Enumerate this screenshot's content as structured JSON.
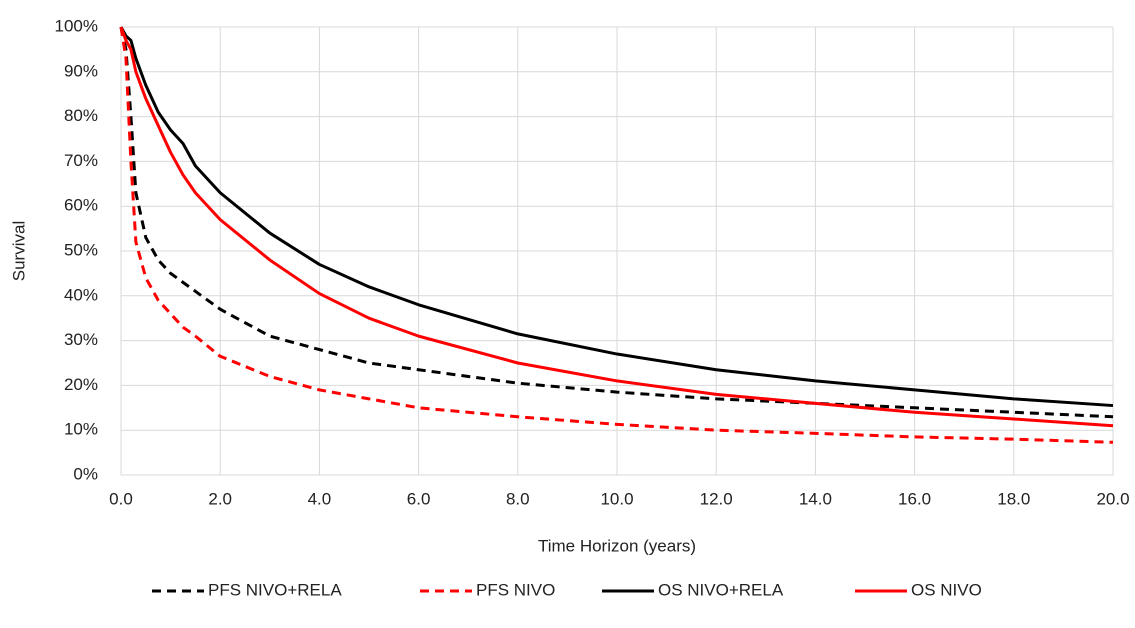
{
  "chart_data": {
    "type": "line",
    "xlabel": "Time Horizon (years)",
    "ylabel": "Survival",
    "x": [
      0,
      0.1,
      0.2,
      0.3,
      0.5,
      0.75,
      1,
      1.25,
      1.5,
      2,
      3,
      4,
      5,
      6,
      8,
      10,
      12,
      14,
      16,
      18,
      20
    ],
    "series": [
      {
        "name": "PFS NIVO+RELA",
        "color": "#000000",
        "dashed": true,
        "values": [
          100,
          95,
          80,
          63,
          53,
          48,
          45,
          43,
          41,
          37,
          31,
          28,
          25,
          23.5,
          20.5,
          18.5,
          17,
          16,
          15,
          14,
          13
        ]
      },
      {
        "name": "PFS NIVO",
        "color": "#ff0000",
        "dashed": true,
        "values": [
          100,
          93,
          70,
          52,
          44,
          39,
          36,
          33,
          31,
          26.5,
          22,
          19,
          17,
          15,
          13,
          11.3,
          10,
          9.3,
          8.5,
          8,
          7.3
        ]
      },
      {
        "name": "OS NIVO+RELA",
        "color": "#000000",
        "dashed": false,
        "values": [
          100,
          98,
          97,
          93,
          87,
          81,
          77,
          74,
          69,
          63,
          54,
          47,
          42,
          38,
          31.5,
          27,
          23.5,
          21,
          19,
          17,
          15.5
        ]
      },
      {
        "name": "OS NIVO",
        "color": "#ff0000",
        "dashed": false,
        "values": [
          100,
          97,
          95,
          90,
          84,
          78,
          72,
          67,
          63,
          57,
          48,
          40.5,
          35,
          31,
          25,
          21,
          18,
          16,
          14,
          12.5,
          11
        ]
      }
    ],
    "xlim": [
      0,
      20
    ],
    "xticks": [
      {
        "value": 0,
        "label": "0.0"
      },
      {
        "value": 2,
        "label": "2.0"
      },
      {
        "value": 4,
        "label": "4.0"
      },
      {
        "value": 6,
        "label": "6.0"
      },
      {
        "value": 8,
        "label": "8.0"
      },
      {
        "value": 10,
        "label": "10.0"
      },
      {
        "value": 12,
        "label": "12.0"
      },
      {
        "value": 14,
        "label": "14.0"
      },
      {
        "value": 16,
        "label": "16.0"
      },
      {
        "value": 18,
        "label": "18.0"
      },
      {
        "value": 20,
        "label": "20.0"
      }
    ],
    "ylim": [
      0,
      100
    ],
    "yticks": [
      {
        "value": 0,
        "label": "0%"
      },
      {
        "value": 10,
        "label": "10%"
      },
      {
        "value": 20,
        "label": "20%"
      },
      {
        "value": 30,
        "label": "30%"
      },
      {
        "value": 40,
        "label": "40%"
      },
      {
        "value": 50,
        "label": "50%"
      },
      {
        "value": 60,
        "label": "60%"
      },
      {
        "value": 70,
        "label": "70%"
      },
      {
        "value": 80,
        "label": "80%"
      },
      {
        "value": 90,
        "label": "90%"
      },
      {
        "value": 100,
        "label": "100%"
      }
    ],
    "grid": true,
    "legend": "bottom"
  }
}
